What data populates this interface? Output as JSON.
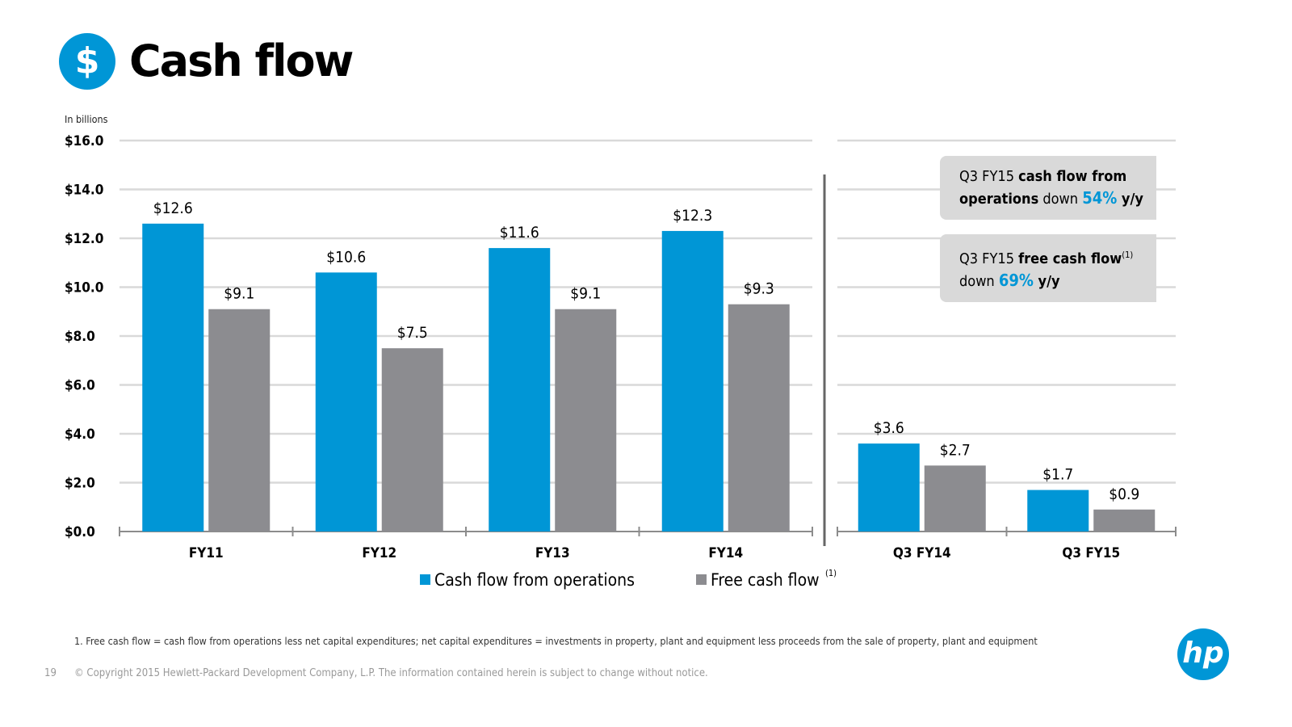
{
  "header": {
    "icon": "dollar-icon",
    "title": "Cash flow"
  },
  "chart_data": {
    "type": "bar",
    "unit_label": "In billions",
    "ylim": [
      0,
      16
    ],
    "yticks": [
      "$0.0",
      "$2.0",
      "$4.0",
      "$6.0",
      "$8.0",
      "$10.0",
      "$12.0",
      "$14.0",
      "$16.0"
    ],
    "grid": true,
    "legend_placement": "bottom",
    "categories": [
      "FY11",
      "FY12",
      "FY13",
      "FY14",
      "Q3 FY14",
      "Q3 FY15"
    ],
    "series": [
      {
        "name": "Cash flow from operations",
        "color": "#0096d6",
        "values": [
          12.6,
          10.6,
          11.6,
          12.3,
          3.6,
          1.7
        ],
        "labels": [
          "$12.6",
          "$10.6",
          "$11.6",
          "$12.3",
          "$3.6",
          "$1.7"
        ]
      },
      {
        "name": "Free cash flow",
        "name_sup": "(1)",
        "color": "#8c8c90",
        "values": [
          9.1,
          7.5,
          9.1,
          9.3,
          2.7,
          0.9
        ],
        "labels": [
          "$9.1",
          "$7.5",
          "$9.1",
          "$9.3",
          "$2.7",
          "$0.9"
        ]
      }
    ]
  },
  "callouts": [
    {
      "a": "Q3 FY15 ",
      "b": "cash flow from operations",
      "c": " down ",
      "pct": "54%",
      "d": " y/y"
    },
    {
      "a": "Q3 FY15 ",
      "b": "free cash flow",
      "sup": "(1)",
      "c": " down ",
      "pct": "69%",
      "d": " y/y"
    }
  ],
  "footnote": "1. Free cash flow = cash flow from operations less net capital expenditures; net capital expenditures = investments in property, plant and equipment less proceeds from the sale of property, plant and equipment",
  "footer": {
    "page": "19",
    "copyright": "© Copyright 2015 Hewlett-Packard Development Company, L.P.  The information contained herein is subject to change without notice.",
    "logo": "hp"
  }
}
